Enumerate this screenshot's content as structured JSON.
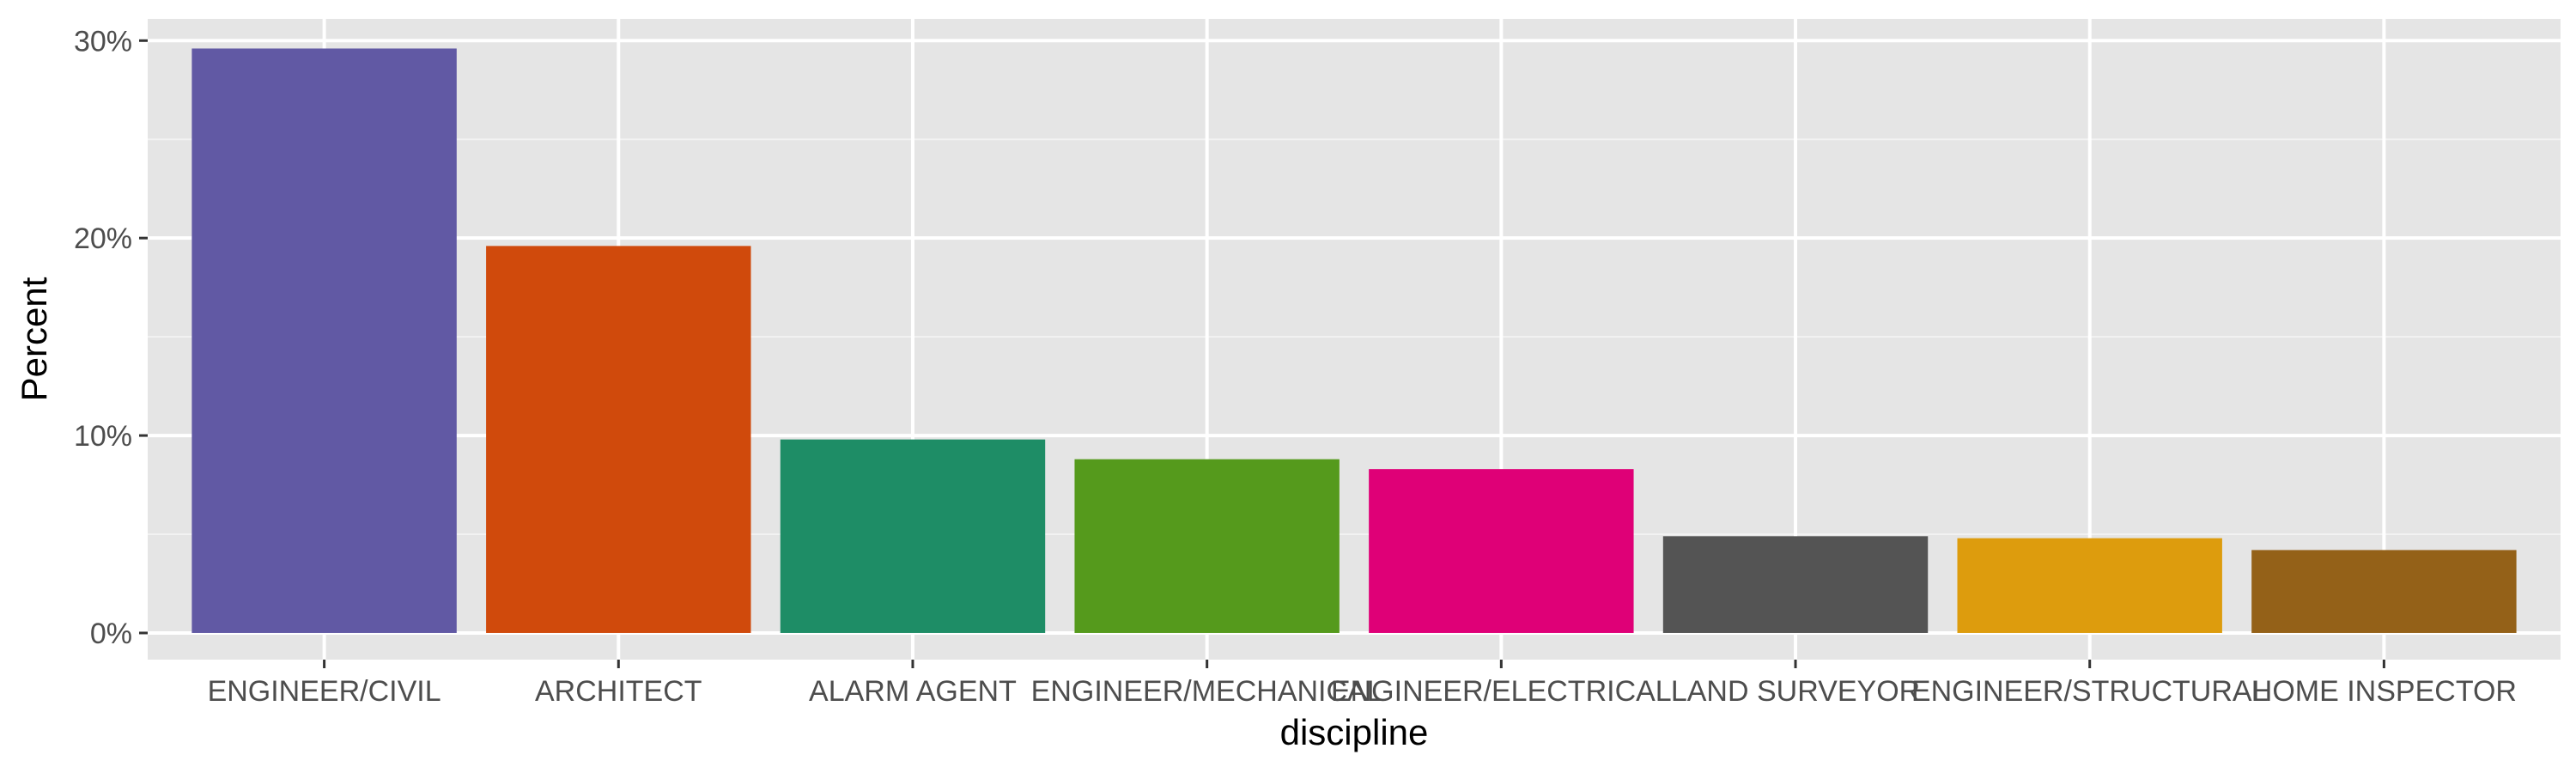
{
  "chart_data": {
    "type": "bar",
    "title": "",
    "xlabel": "discipline",
    "ylabel": "Percent",
    "categories": [
      "ENGINEER/CIVIL",
      "ARCHITECT",
      "ALARM AGENT",
      "ENGINEER/MECHANICAL",
      "ENGINEER/ELECTRICAL",
      "LAND SURVEYOR",
      "ENGINEER/STRUCTURAL",
      "HOME INSPECTOR"
    ],
    "values": [
      29.6,
      19.6,
      9.8,
      8.8,
      8.3,
      4.9,
      4.8,
      4.2
    ],
    "colors": [
      "#6159a4",
      "#d04a0c",
      "#1e8d66",
      "#559a1c",
      "#df0077",
      "#545454",
      "#dd9c0d",
      "#946118"
    ],
    "ylim": [
      -1.35,
      31.1
    ],
    "yticks": [
      0,
      10,
      20,
      30
    ],
    "ytick_labels": [
      "0%",
      "10%",
      "20%",
      "30%"
    ],
    "grid": true,
    "legend": false
  }
}
